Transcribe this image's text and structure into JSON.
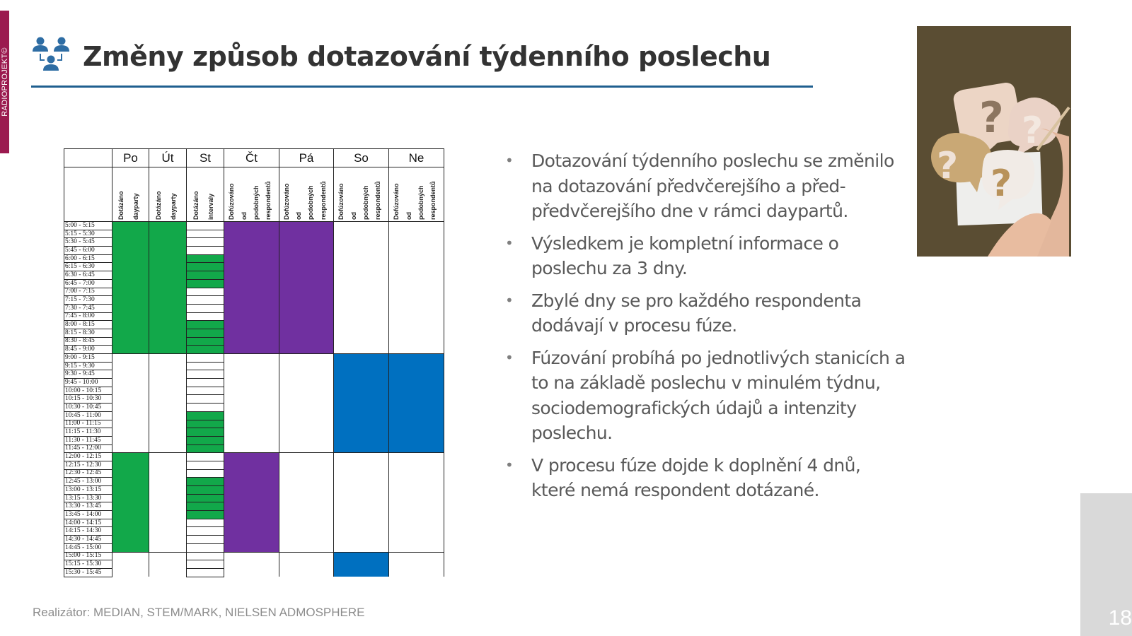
{
  "sidebar": {
    "label": "RADIOPROJEKT©"
  },
  "header": {
    "title": "Změny způsob dotazování týdenního poslechu",
    "icon": "people-hierarchy-icon"
  },
  "colors": {
    "accent": "#1f5f8f",
    "sidebar": "#9b1a4f",
    "green": "#12a84a",
    "purple": "#7030a0",
    "blue": "#0070c0"
  },
  "schedule": {
    "days": [
      {
        "label": "Po",
        "sub": [
          "Dotázáno",
          "dayparty"
        ]
      },
      {
        "label": "Út",
        "sub": [
          "Dotázáno",
          "dayparty"
        ]
      },
      {
        "label": "St",
        "sub": [
          "Dotázáno",
          "intervaly"
        ]
      },
      {
        "label": "Čt",
        "sub": [
          "Dofúzováno",
          "od",
          "podobných",
          "respondentů"
        ]
      },
      {
        "label": "Pá",
        "sub": [
          "Dofúzováno",
          "od",
          "podobných",
          "respondentů"
        ]
      },
      {
        "label": "So",
        "sub": [
          "Dofúzováno",
          "od",
          "podobných",
          "respondentů"
        ]
      },
      {
        "label": "Ne",
        "sub": [
          "Dofúzováno",
          "od",
          "podobných",
          "respondentů"
        ]
      }
    ],
    "times": [
      "5:00 - 5:15",
      "5:15 - 5:30",
      "5:30 - 5:45",
      "5:45 - 6:00",
      "6:00 - 6:15",
      "6:15 - 6:30",
      "6:30 - 6:45",
      "6:45 - 7:00",
      "7:00 - 7:15",
      "7:15 - 7:30",
      "7:30 - 7:45",
      "7:45 - 8:00",
      "8:00 - 8:15",
      "8:15 - 8:30",
      "8:30 - 8:45",
      "8:45 - 9:00",
      "9:00 - 9:15",
      "9:15 - 9:30",
      "9:30 - 9:45",
      "9:45 - 10:00",
      "10:00 - 10:15",
      "10:15 - 10:30",
      "10:30 - 10:45",
      "10:45 - 11:00",
      "11:00 - 11:15",
      "11:15 - 11:30",
      "11:30 - 11:45",
      "11:45 - 12:00",
      "12:00 - 12:15",
      "12:15 - 12:30",
      "12:30 - 12:45",
      "12:45 - 13:00",
      "13:00 - 13:15",
      "13:15 - 13:30",
      "13:30 - 13:45",
      "13:45 - 14:00",
      "14:00 - 14:15",
      "14:15 - 14:30",
      "14:30 - 14:45",
      "14:45 - 15:00",
      "15:00 - 15:15",
      "15:15 - 15:30",
      "15:30 - 15:45"
    ],
    "fills": {
      "Po": {
        "color": "green",
        "ranges": [
          [
            0,
            15
          ],
          [
            28,
            39
          ]
        ]
      },
      "Út": {
        "color": "green",
        "ranges": [
          [
            0,
            15
          ]
        ]
      },
      "St": {
        "color": "green",
        "ranges": [
          [
            4,
            7
          ],
          [
            12,
            15
          ],
          [
            23,
            27
          ],
          [
            31,
            35
          ]
        ]
      },
      "Čt": {
        "color": "purple",
        "ranges": [
          [
            0,
            15
          ],
          [
            28,
            39
          ]
        ]
      },
      "Pá": {
        "color": "purple",
        "ranges": [
          [
            0,
            15
          ]
        ]
      },
      "So": {
        "color": "blue",
        "ranges": [
          [
            16,
            27
          ],
          [
            40,
            42
          ]
        ]
      },
      "Ne": {
        "color": "blue",
        "ranges": [
          [
            16,
            27
          ]
        ]
      }
    },
    "block_boundaries": [
      16,
      28,
      40
    ]
  },
  "bullets": [
    "Dotazování týdenního poslechu se změnilo na dotazování předvčerejšího a před-předvčerejšího dne v rámci daypartů.",
    "Výsledkem je kompletní informace o poslechu za 3 dny.",
    "Zbylé dny se pro každého respondenta dodávají v procesu fúze.",
    "Fúzování probíhá po jednotlivých stanicích a to na základě poslechu v minulém týdnu, sociodemografických údajů a intenzity poslechu.",
    "V procesu fúze dojde k doplnění 4 dnů, které nemá respondent dotázané."
  ],
  "bullet_marker": "•",
  "photo": {
    "description": "paper question mark speech bubbles on brown background with hands"
  },
  "footer": {
    "text": "Realizátor: MEDIAN, STEM/MARK, NIELSEN ADMOSPHERE"
  },
  "page": {
    "number": "18"
  }
}
